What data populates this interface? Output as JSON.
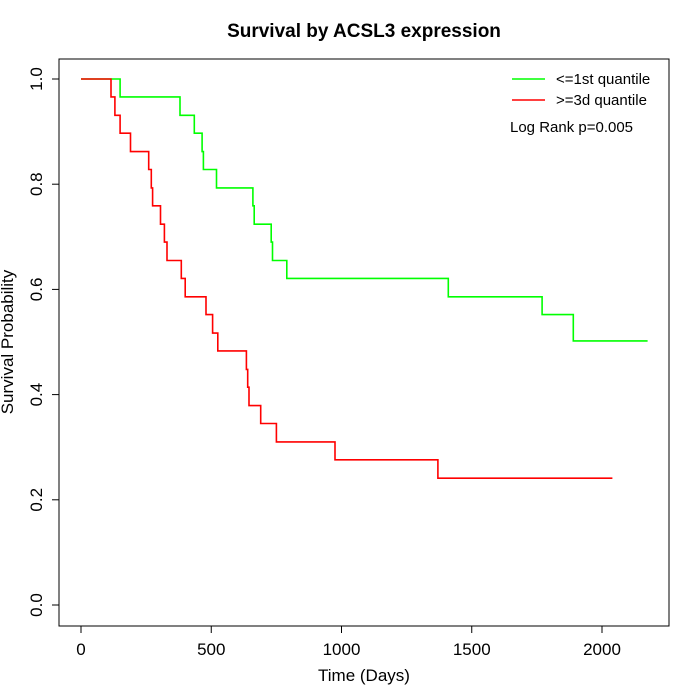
{
  "chart_data": {
    "type": "line",
    "subtype": "kaplan-meier step",
    "title": "Survival by ACSL3 expression",
    "xlabel": "Time (Days)",
    "ylabel": "Survival Probability",
    "xlim": [
      0,
      2200
    ],
    "ylim": [
      0,
      1
    ],
    "x_ticks": [
      0,
      500,
      1000,
      1500,
      2000
    ],
    "x_tick_labels": [
      "0",
      "500",
      "1000",
      "1500",
      "2000"
    ],
    "y_ticks": [
      0.0,
      0.2,
      0.4,
      0.6,
      0.8,
      1.0
    ],
    "y_tick_labels": [
      "0.0",
      "0.2",
      "0.4",
      "0.6",
      "0.8",
      "1.0"
    ],
    "grid": false,
    "legend_position": "top-right",
    "annotation": "Log Rank p=0.005",
    "series": [
      {
        "name": "<=1st quantile",
        "color": "#00ff00",
        "points": [
          [
            0,
            1.0
          ],
          [
            150,
            0.966
          ],
          [
            380,
            0.931
          ],
          [
            435,
            0.897
          ],
          [
            465,
            0.862
          ],
          [
            470,
            0.828
          ],
          [
            520,
            0.793
          ],
          [
            660,
            0.759
          ],
          [
            665,
            0.724
          ],
          [
            730,
            0.69
          ],
          [
            735,
            0.655
          ],
          [
            790,
            0.621
          ],
          [
            1410,
            0.586
          ],
          [
            1770,
            0.552
          ],
          [
            1890,
            0.502
          ],
          [
            2175,
            0.502
          ]
        ]
      },
      {
        "name": ">=3d quantile",
        "color": "#ff0000",
        "points": [
          [
            0,
            1.0
          ],
          [
            115,
            0.966
          ],
          [
            130,
            0.931
          ],
          [
            150,
            0.897
          ],
          [
            190,
            0.862
          ],
          [
            260,
            0.828
          ],
          [
            270,
            0.793
          ],
          [
            275,
            0.759
          ],
          [
            305,
            0.724
          ],
          [
            320,
            0.69
          ],
          [
            330,
            0.655
          ],
          [
            385,
            0.621
          ],
          [
            400,
            0.586
          ],
          [
            480,
            0.552
          ],
          [
            505,
            0.517
          ],
          [
            525,
            0.483
          ],
          [
            635,
            0.448
          ],
          [
            640,
            0.414
          ],
          [
            645,
            0.379
          ],
          [
            690,
            0.345
          ],
          [
            750,
            0.31
          ],
          [
            975,
            0.276
          ],
          [
            1370,
            0.241
          ],
          [
            2040,
            0.241
          ]
        ]
      }
    ]
  }
}
